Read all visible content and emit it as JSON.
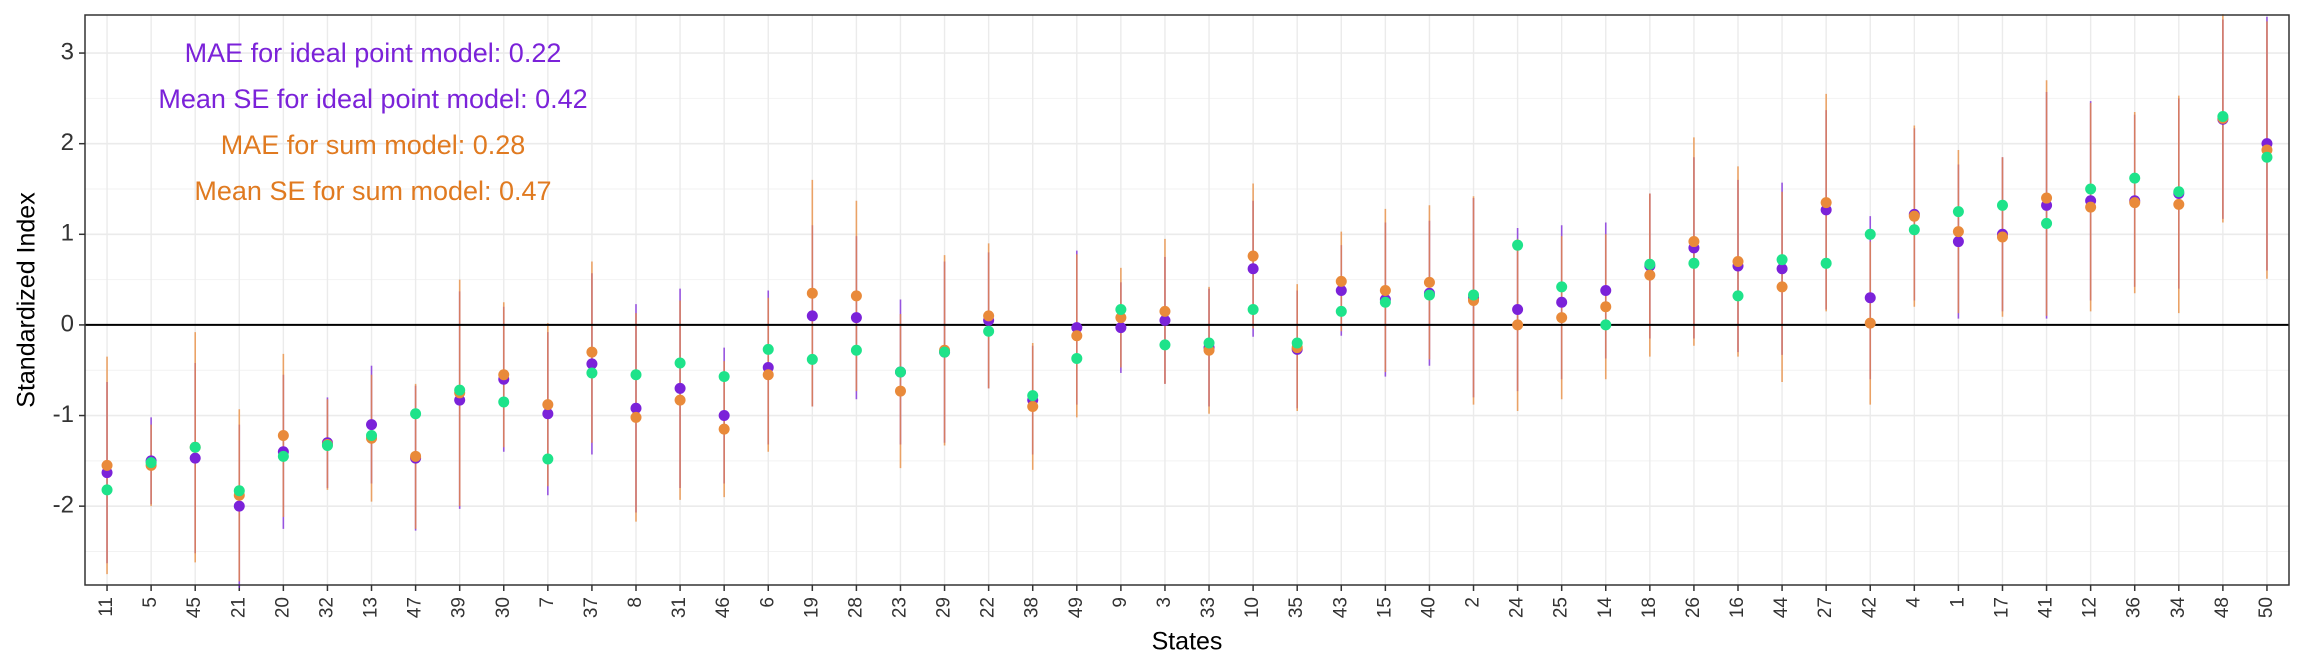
{
  "chart_data": {
    "type": "errorbar-dots",
    "xlabel": "States",
    "ylabel": "Standardized Index",
    "categories": [
      "11",
      "5",
      "45",
      "21",
      "20",
      "32",
      "13",
      "47",
      "39",
      "30",
      "7",
      "37",
      "8",
      "31",
      "46",
      "6",
      "19",
      "28",
      "23",
      "29",
      "22",
      "38",
      "49",
      "9",
      "3",
      "33",
      "10",
      "35",
      "43",
      "15",
      "40",
      "2",
      "24",
      "25",
      "14",
      "18",
      "26",
      "16",
      "44",
      "27",
      "42",
      "4",
      "1",
      "17",
      "41",
      "12",
      "36",
      "34",
      "48",
      "50"
    ],
    "series": [
      {
        "color": "#7b22d9",
        "values": [
          -1.63,
          -1.5,
          -1.47,
          -2.0,
          -1.4,
          -1.3,
          -1.1,
          -1.47,
          -0.83,
          -0.6,
          -0.98,
          -0.43,
          -0.92,
          -0.7,
          -1.0,
          -0.47,
          0.1,
          0.08,
          -0.52,
          -0.3,
          0.05,
          -0.83,
          -0.03,
          -0.03,
          0.05,
          -0.25,
          0.62,
          -0.27,
          0.38,
          0.28,
          0.35,
          0.3,
          0.17,
          0.25,
          0.38,
          0.65,
          0.85,
          0.65,
          0.62,
          1.27,
          0.3,
          1.22,
          0.92,
          1.0,
          1.32,
          1.37,
          1.37,
          1.45,
          2.27,
          2.0
        ],
        "errors": [
          1.0,
          0.48,
          1.05,
          0.9,
          0.85,
          0.5,
          0.65,
          0.8,
          1.2,
          0.8,
          0.9,
          1.0,
          1.15,
          1.1,
          0.75,
          0.85,
          1.0,
          0.9,
          0.8,
          1.0,
          0.75,
          0.6,
          0.85,
          0.5,
          0.7,
          0.65,
          0.75,
          0.65,
          0.5,
          0.85,
          0.8,
          1.1,
          0.9,
          0.85,
          0.75,
          0.8,
          1.0,
          0.95,
          0.95,
          1.1,
          0.9,
          0.95,
          0.85,
          0.85,
          1.25,
          1.1,
          0.95,
          1.05,
          1.1,
          1.4
        ]
      },
      {
        "color": "#e98a3a",
        "values": [
          -1.55,
          -1.55,
          -1.35,
          -1.88,
          -1.22,
          -1.32,
          -1.25,
          -1.45,
          -0.75,
          -0.55,
          -0.88,
          -0.3,
          -1.02,
          -0.83,
          -1.15,
          -0.55,
          0.35,
          0.32,
          -0.73,
          -0.28,
          0.1,
          -0.9,
          -0.12,
          0.08,
          0.15,
          -0.28,
          0.76,
          -0.25,
          0.48,
          0.38,
          0.47,
          0.27,
          0.0,
          0.08,
          0.2,
          0.55,
          0.92,
          0.7,
          0.42,
          1.35,
          0.02,
          1.2,
          1.03,
          0.97,
          1.4,
          1.3,
          1.35,
          1.33,
          2.28,
          1.93
        ],
        "errors": [
          1.2,
          0.45,
          1.27,
          0.95,
          0.9,
          0.5,
          0.7,
          0.8,
          1.25,
          0.8,
          0.9,
          1.0,
          1.15,
          1.1,
          0.75,
          0.85,
          1.25,
          1.05,
          0.85,
          1.05,
          0.8,
          0.7,
          0.9,
          0.55,
          0.8,
          0.7,
          0.8,
          0.7,
          0.55,
          0.9,
          0.85,
          1.15,
          0.95,
          0.9,
          0.8,
          0.9,
          1.15,
          1.05,
          1.05,
          1.2,
          0.9,
          1.0,
          0.9,
          0.88,
          1.3,
          1.15,
          1.0,
          1.2,
          1.15,
          1.42
        ]
      },
      {
        "color": "#1ee38a",
        "values": [
          -1.82,
          -1.52,
          -1.35,
          -1.83,
          -1.45,
          -1.33,
          -1.22,
          -0.98,
          -0.72,
          -0.85,
          -1.48,
          -0.53,
          -0.55,
          -0.42,
          -0.57,
          -0.27,
          -0.38,
          -0.28,
          -0.52,
          -0.3,
          -0.07,
          -0.78,
          -0.37,
          0.17,
          -0.22,
          -0.2,
          0.17,
          -0.2,
          0.15,
          0.25,
          0.33,
          0.33,
          0.88,
          0.42,
          0.0,
          0.67,
          0.68,
          0.32,
          0.72,
          0.68,
          1.0,
          1.05,
          1.25,
          1.32,
          1.12,
          1.5,
          1.62,
          1.47,
          2.3,
          1.85
        ]
      }
    ],
    "annotations": [
      {
        "text": "MAE for ideal point model: 0.22",
        "color": "#7b22d9"
      },
      {
        "text": "Mean SE for ideal point model: 0.42",
        "color": "#7b22d9"
      },
      {
        "text": "MAE for sum model: 0.28",
        "color": "#e07a20"
      },
      {
        "text": "Mean SE for sum model: 0.47",
        "color": "#e07a20"
      }
    ],
    "reference_line": 0,
    "ylim": [
      -2.87,
      3.42
    ],
    "yticks": [
      -2,
      -1,
      0,
      1,
      2,
      3
    ],
    "grid": true
  }
}
